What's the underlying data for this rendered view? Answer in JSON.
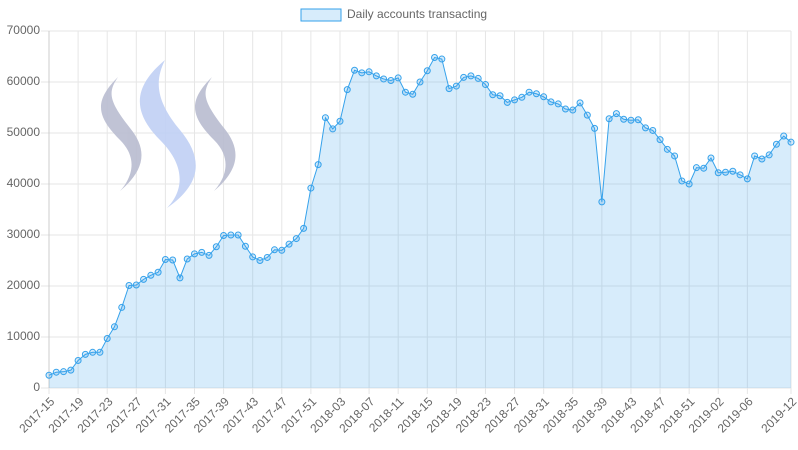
{
  "chart_data": {
    "type": "line",
    "categories": [
      "2017-15",
      null,
      null,
      null,
      "2017-19",
      null,
      null,
      null,
      "2017-23",
      null,
      null,
      null,
      "2017-27",
      null,
      null,
      null,
      "2017-31",
      null,
      null,
      null,
      "2017-35",
      null,
      null,
      null,
      "2017-39",
      null,
      null,
      null,
      "2017-43",
      null,
      null,
      null,
      "2017-47",
      null,
      null,
      null,
      "2017-51",
      null,
      null,
      null,
      "2018-03",
      null,
      null,
      null,
      "2018-07",
      null,
      null,
      null,
      "2018-11",
      null,
      null,
      null,
      "2018-15",
      null,
      null,
      null,
      "2018-19",
      null,
      null,
      null,
      "2018-23",
      null,
      null,
      null,
      "2018-27",
      null,
      null,
      null,
      "2018-31",
      null,
      null,
      null,
      "2018-35",
      null,
      null,
      null,
      "2018-39",
      null,
      null,
      null,
      "2018-43",
      null,
      null,
      null,
      "2018-47",
      null,
      null,
      null,
      "2018-51",
      null,
      null,
      null,
      "2019-02",
      null,
      null,
      null,
      "2019-06",
      null,
      null,
      null,
      null,
      null,
      "2019-12"
    ],
    "series": [
      {
        "name": "Daily accounts transacting",
        "color": "#36a2eb",
        "values": [
          2500,
          3100,
          3200,
          3500,
          5400,
          6600,
          7000,
          7000,
          9700,
          12000,
          15800,
          20100,
          20200,
          21300,
          22100,
          22700,
          25200,
          25100,
          21600,
          25300,
          26300,
          26600,
          26000,
          27700,
          29900,
          30000,
          30000,
          27800,
          25700,
          25000,
          25600,
          27100,
          27000,
          28200,
          29300,
          31300,
          39200,
          43800,
          53000,
          50800,
          52300,
          58500,
          62300,
          61800,
          62000,
          61200,
          60600,
          60300,
          60800,
          58000,
          57600,
          60000,
          62200,
          64800,
          64500,
          58700,
          59200,
          60900,
          61200,
          60700,
          59500,
          57500,
          57300,
          56000,
          56500,
          57000,
          58000,
          57700,
          57100,
          56100,
          55700,
          54700,
          54500,
          55900,
          53500,
          50900,
          36500,
          52800,
          53800,
          52700,
          52500,
          52600,
          51000,
          50500,
          48700,
          46800,
          45500,
          40600,
          40000,
          43200,
          43100,
          45100,
          42200,
          42300,
          42500,
          41800,
          41000,
          45500,
          44900,
          45700,
          47800,
          49400,
          48200
        ]
      }
    ],
    "ylim": [
      0,
      70000
    ],
    "yticks": [
      0,
      10000,
      20000,
      30000,
      40000,
      50000,
      60000,
      70000
    ],
    "grid": true,
    "fill": true,
    "legend": "top"
  }
}
